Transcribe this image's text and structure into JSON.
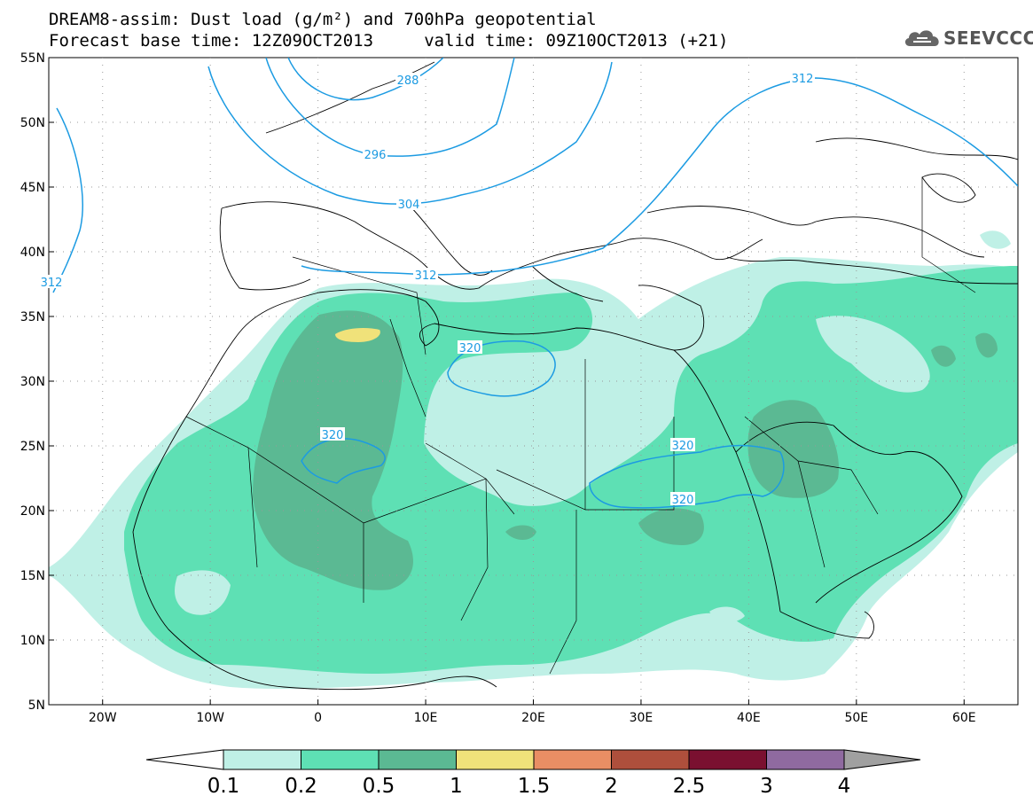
{
  "header": {
    "title_line1": "DREAM8-assim: Dust load (g/m²) and 700hPa geopotential",
    "title_line2": "Forecast base time: 12Z09OCT2013     valid time: 09Z10OCT2013 (+21)"
  },
  "logo": {
    "text": "SEEVCCC",
    "icon": "cloud-icon"
  },
  "axes": {
    "lon_labels": [
      "20W",
      "10W",
      "0",
      "10E",
      "20E",
      "30E",
      "40E",
      "50E",
      "60E"
    ],
    "lat_labels": [
      "55N",
      "50N",
      "45N",
      "40N",
      "35N",
      "30N",
      "25N",
      "20N",
      "15N",
      "10N",
      "5N"
    ]
  },
  "colors": {
    "c01": "#bff0e6",
    "c02": "#5ee0b4",
    "c05": "#5bb993",
    "c1": "#f0e27a",
    "c15": "#e98e64",
    "c2": "#ae4f3c",
    "c25": "#7a1030",
    "c3": "#8f6aa0",
    "c4": "#a0a0a0",
    "contour": "#1c9be2"
  },
  "contours": {
    "labels": [
      "288",
      "296",
      "304",
      "312",
      "312",
      "312",
      "320",
      "320",
      "320",
      "320"
    ]
  },
  "colorbar": {
    "labels": [
      "0.1",
      "0.2",
      "0.5",
      "1",
      "1.5",
      "2",
      "2.5",
      "3",
      "4"
    ]
  }
}
